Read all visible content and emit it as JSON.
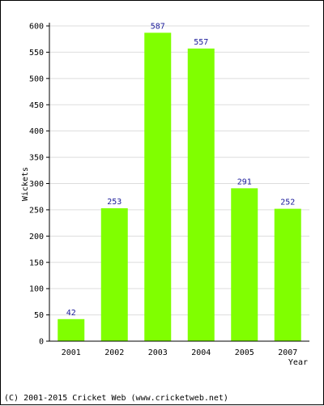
{
  "chart_data": {
    "type": "bar",
    "categories": [
      "2001",
      "2002",
      "2003",
      "2004",
      "2005",
      "2007"
    ],
    "values": [
      42,
      253,
      587,
      557,
      291,
      252
    ],
    "value_labels": [
      "42",
      "253",
      "587",
      "557",
      "291",
      "252"
    ],
    "title": "",
    "xlabel": "Year",
    "ylabel": "Wickets",
    "ylim": [
      0,
      600
    ],
    "yticks": [
      "0",
      "50",
      "100",
      "150",
      "200",
      "250",
      "300",
      "350",
      "400",
      "450",
      "500",
      "550",
      "600"
    ],
    "grid": true,
    "legend": "none",
    "bar_color": "#80ff00",
    "value_label_color": "#1a1a99"
  },
  "footer": "(C) 2001-2015 Cricket Web (www.cricketweb.net)"
}
